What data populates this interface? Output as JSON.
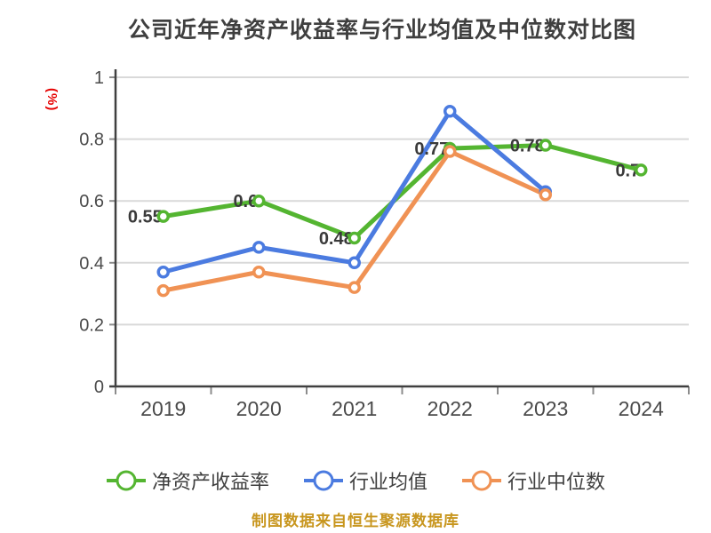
{
  "chart_data": {
    "type": "line",
    "title": "公司近年净资产收益率与行业均值及中位数对比图",
    "unit_label": "(%)",
    "footer": "制图数据来自恒生聚源数据库",
    "categories": [
      "2019",
      "2020",
      "2021",
      "2022",
      "2023",
      "2024"
    ],
    "ylim": [
      0,
      1
    ],
    "yticks": [
      0,
      0.2,
      0.4,
      0.6,
      0.8,
      1
    ],
    "ytick_labels": [
      "0",
      "0.2",
      "0.4",
      "0.6",
      "0.8",
      "1"
    ],
    "grid": true,
    "legend_position": "bottom",
    "series": [
      {
        "name": "净资产收益率",
        "color": "#54b531",
        "values": [
          0.55,
          0.6,
          0.48,
          0.77,
          0.78,
          0.7
        ],
        "point_labels": [
          "0.55",
          "0.6",
          "0.48",
          "0.77",
          "0.78",
          "0.7"
        ]
      },
      {
        "name": "行业均值",
        "color": "#4b7be0",
        "values": [
          0.37,
          0.45,
          0.4,
          0.89,
          0.63,
          null
        ],
        "point_labels": []
      },
      {
        "name": "行业中位数",
        "color": "#f09254",
        "values": [
          0.31,
          0.37,
          0.32,
          0.76,
          0.62,
          null
        ],
        "point_labels": []
      }
    ],
    "colors": {
      "grid": "#d9d9d9",
      "axis": "#404040",
      "tick": "#8c8c8c",
      "tick_text": "#4a4a4a",
      "title_text": "#3f3f3f",
      "unit_text": "#e60000",
      "footer_text": "#c8961e",
      "label_text": "#3a3a3a",
      "marker_fill": "#ffffff"
    }
  }
}
